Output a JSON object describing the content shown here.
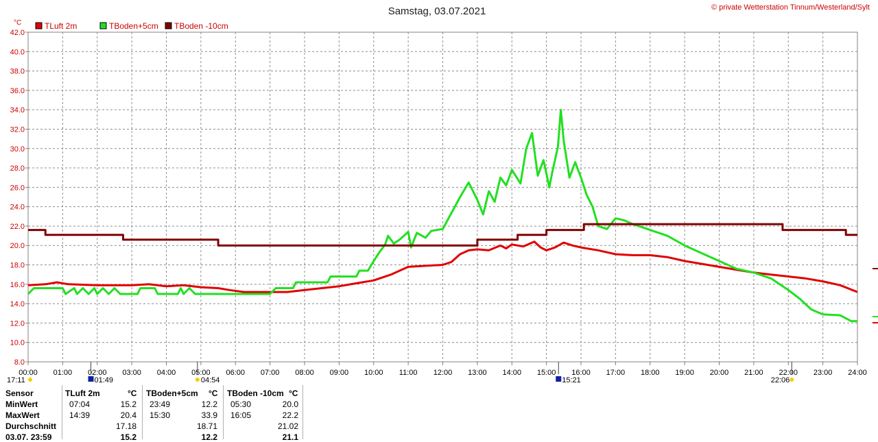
{
  "header": {
    "title": "Samstag, 03.07.2021",
    "copyright": "© private Wetterstation Tinnum/Westerland/Sylt"
  },
  "colors": {
    "tluft": "#e00000",
    "tboden5": "#20e020",
    "tboden10": "#800000",
    "axis_text": "#cc0000",
    "grid": "#8c8c8c",
    "sun": "#f0d000",
    "moon": "#1020a0"
  },
  "chart_data": {
    "type": "line",
    "unit_label": "°C",
    "ylim": [
      8,
      42
    ],
    "y_ticks": [
      "8.0",
      "10.0",
      "12.0",
      "14.0",
      "16.0",
      "18.0",
      "20.0",
      "22.0",
      "24.0",
      "26.0",
      "28.0",
      "30.0",
      "32.0",
      "34.0",
      "36.0",
      "38.0",
      "40.0",
      "42.0"
    ],
    "xlim_hours": [
      0,
      24
    ],
    "x_ticks": [
      "00:00",
      "01:00",
      "02:00",
      "03:00",
      "04:00",
      "05:00",
      "06:00",
      "07:00",
      "08:00",
      "09:00",
      "10:00",
      "11:00",
      "12:00",
      "13:00",
      "14:00",
      "15:00",
      "16:00",
      "17:00",
      "18:00",
      "19:00",
      "20:00",
      "21:00",
      "22:00",
      "23:00",
      "24:00"
    ],
    "grid": true,
    "legend_position": "top-left",
    "series": [
      {
        "name": "TLuft 2m",
        "color_key": "tluft",
        "points": [
          [
            "00:00",
            15.9
          ],
          [
            "00:30",
            16.0
          ],
          [
            "00:50",
            16.2
          ],
          [
            "01:10",
            16.0
          ],
          [
            "02:00",
            15.9
          ],
          [
            "03:00",
            15.9
          ],
          [
            "03:30",
            16.0
          ],
          [
            "04:00",
            15.8
          ],
          [
            "04:30",
            15.9
          ],
          [
            "05:00",
            15.7
          ],
          [
            "05:30",
            15.6
          ],
          [
            "05:50",
            15.4
          ],
          [
            "06:15",
            15.2
          ],
          [
            "07:04",
            15.2
          ],
          [
            "07:30",
            15.2
          ],
          [
            "08:00",
            15.4
          ],
          [
            "08:30",
            15.6
          ],
          [
            "09:00",
            15.8
          ],
          [
            "09:30",
            16.1
          ],
          [
            "10:00",
            16.4
          ],
          [
            "10:30",
            17.0
          ],
          [
            "11:00",
            17.8
          ],
          [
            "11:30",
            17.9
          ],
          [
            "12:00",
            18.0
          ],
          [
            "12:15",
            18.3
          ],
          [
            "12:30",
            19.1
          ],
          [
            "12:45",
            19.5
          ],
          [
            "13:00",
            19.6
          ],
          [
            "13:20",
            19.5
          ],
          [
            "13:40",
            20.0
          ],
          [
            "13:50",
            19.7
          ],
          [
            "14:00",
            20.1
          ],
          [
            "14:20",
            19.9
          ],
          [
            "14:39",
            20.4
          ],
          [
            "14:50",
            19.8
          ],
          [
            "15:00",
            19.5
          ],
          [
            "15:15",
            19.8
          ],
          [
            "15:30",
            20.3
          ],
          [
            "15:45",
            20.0
          ],
          [
            "16:00",
            19.8
          ],
          [
            "16:30",
            19.5
          ],
          [
            "17:00",
            19.1
          ],
          [
            "17:30",
            19.0
          ],
          [
            "18:00",
            19.0
          ],
          [
            "18:30",
            18.8
          ],
          [
            "19:00",
            18.4
          ],
          [
            "19:30",
            18.1
          ],
          [
            "20:00",
            17.8
          ],
          [
            "20:30",
            17.5
          ],
          [
            "21:00",
            17.2
          ],
          [
            "21:30",
            17.0
          ],
          [
            "22:00",
            16.8
          ],
          [
            "22:30",
            16.6
          ],
          [
            "23:00",
            16.3
          ],
          [
            "23:30",
            15.9
          ],
          [
            "24:00",
            15.2
          ]
        ]
      },
      {
        "name": "TBoden+5cm",
        "color_key": "tboden5",
        "points": [
          [
            "00:00",
            15.0
          ],
          [
            "00:10",
            15.6
          ],
          [
            "01:00",
            15.6
          ],
          [
            "01:05",
            15.0
          ],
          [
            "01:20",
            15.6
          ],
          [
            "01:25",
            15.0
          ],
          [
            "01:35",
            15.6
          ],
          [
            "01:45",
            15.0
          ],
          [
            "01:55",
            15.6
          ],
          [
            "02:00",
            15.0
          ],
          [
            "02:10",
            15.6
          ],
          [
            "02:20",
            15.0
          ],
          [
            "02:30",
            15.6
          ],
          [
            "02:40",
            15.0
          ],
          [
            "03:10",
            15.0
          ],
          [
            "03:15",
            15.6
          ],
          [
            "03:40",
            15.6
          ],
          [
            "03:45",
            15.0
          ],
          [
            "04:20",
            15.0
          ],
          [
            "04:25",
            15.6
          ],
          [
            "04:30",
            15.0
          ],
          [
            "04:40",
            15.6
          ],
          [
            "04:50",
            15.0
          ],
          [
            "07:00",
            15.0
          ],
          [
            "07:10",
            15.6
          ],
          [
            "07:40",
            15.6
          ],
          [
            "07:45",
            16.2
          ],
          [
            "08:40",
            16.2
          ],
          [
            "08:45",
            16.8
          ],
          [
            "09:30",
            16.8
          ],
          [
            "09:35",
            17.4
          ],
          [
            "09:50",
            17.4
          ],
          [
            "10:00",
            18.4
          ],
          [
            "10:10",
            19.3
          ],
          [
            "10:20",
            20.1
          ],
          [
            "10:25",
            21.0
          ],
          [
            "10:35",
            20.2
          ],
          [
            "10:45",
            20.6
          ],
          [
            "11:00",
            21.4
          ],
          [
            "11:05",
            19.8
          ],
          [
            "11:15",
            21.3
          ],
          [
            "11:30",
            20.8
          ],
          [
            "11:40",
            21.5
          ],
          [
            "12:00",
            21.7
          ],
          [
            "12:10",
            22.8
          ],
          [
            "12:20",
            23.9
          ],
          [
            "12:30",
            25.0
          ],
          [
            "12:45",
            26.5
          ],
          [
            "13:00",
            24.7
          ],
          [
            "13:10",
            23.2
          ],
          [
            "13:20",
            25.6
          ],
          [
            "13:30",
            24.5
          ],
          [
            "13:40",
            27.0
          ],
          [
            "13:50",
            26.2
          ],
          [
            "14:00",
            27.8
          ],
          [
            "14:15",
            26.4
          ],
          [
            "14:25",
            30.0
          ],
          [
            "14:35",
            31.6
          ],
          [
            "14:45",
            27.2
          ],
          [
            "14:55",
            28.8
          ],
          [
            "15:05",
            26.0
          ],
          [
            "15:10",
            27.5
          ],
          [
            "15:20",
            30.2
          ],
          [
            "15:25",
            34.0
          ],
          [
            "15:30",
            30.8
          ],
          [
            "15:40",
            27.0
          ],
          [
            "15:50",
            28.6
          ],
          [
            "16:00",
            27.0
          ],
          [
            "16:10",
            25.2
          ],
          [
            "16:20",
            24.0
          ],
          [
            "16:30",
            22.0
          ],
          [
            "16:45",
            21.7
          ],
          [
            "17:00",
            22.8
          ],
          [
            "17:15",
            22.6
          ],
          [
            "17:30",
            22.2
          ],
          [
            "18:00",
            21.6
          ],
          [
            "18:30",
            21.0
          ],
          [
            "19:00",
            20.0
          ],
          [
            "19:30",
            19.2
          ],
          [
            "20:00",
            18.4
          ],
          [
            "20:30",
            17.6
          ],
          [
            "21:00",
            17.2
          ],
          [
            "21:30",
            16.6
          ],
          [
            "22:00",
            15.4
          ],
          [
            "22:20",
            14.5
          ],
          [
            "22:40",
            13.4
          ],
          [
            "23:00",
            12.9
          ],
          [
            "23:30",
            12.8
          ],
          [
            "23:49",
            12.2
          ],
          [
            "24:00",
            12.2
          ]
        ]
      },
      {
        "name": "TBoden -10cm",
        "color_key": "tboden10",
        "points": [
          [
            "00:00",
            21.6
          ],
          [
            "00:30",
            21.6
          ],
          [
            "00:30",
            21.1
          ],
          [
            "02:45",
            21.1
          ],
          [
            "02:45",
            20.6
          ],
          [
            "05:30",
            20.6
          ],
          [
            "05:30",
            20.0
          ],
          [
            "13:00",
            20.0
          ],
          [
            "13:00",
            20.6
          ],
          [
            "14:10",
            20.6
          ],
          [
            "14:10",
            21.1
          ],
          [
            "15:00",
            21.1
          ],
          [
            "15:00",
            21.6
          ],
          [
            "16:05",
            21.6
          ],
          [
            "16:05",
            22.2
          ],
          [
            "21:50",
            22.2
          ],
          [
            "21:50",
            21.6
          ],
          [
            "23:40",
            21.6
          ],
          [
            "23:40",
            21.1
          ],
          [
            "24:00",
            21.1
          ]
        ]
      }
    ],
    "astro": {
      "sunrise": "04:54",
      "sunset": "22:06",
      "moonrise": "01:49",
      "moonset": "15:21",
      "left_time": "17:11"
    }
  },
  "stats": {
    "headers": [
      "Sensor",
      "TLuft 2m",
      "°C",
      "TBoden+5cm",
      "°C",
      "TBoden -10cm",
      "°C"
    ],
    "rows": [
      {
        "label": "MinWert",
        "c1t": "07:04",
        "c1v": "15.2",
        "c2t": "23:49",
        "c2v": "12.2",
        "c3t": "05:30",
        "c3v": "20.0"
      },
      {
        "label": "MaxWert",
        "c1t": "14:39",
        "c1v": "20.4",
        "c2t": "15:30",
        "c2v": "33.9",
        "c3t": "16:05",
        "c3v": "22.2"
      },
      {
        "label": "Durchschnitt",
        "c1t": "",
        "c1v": "17.18",
        "c2t": "",
        "c2v": "18.71",
        "c3t": "",
        "c3v": "21.02"
      },
      {
        "label": "03.07. 23:59",
        "c1t": "",
        "c1v": "15.2",
        "c2t": "",
        "c2v": "12.2",
        "c3t": "",
        "c3v": "21.1"
      }
    ]
  }
}
